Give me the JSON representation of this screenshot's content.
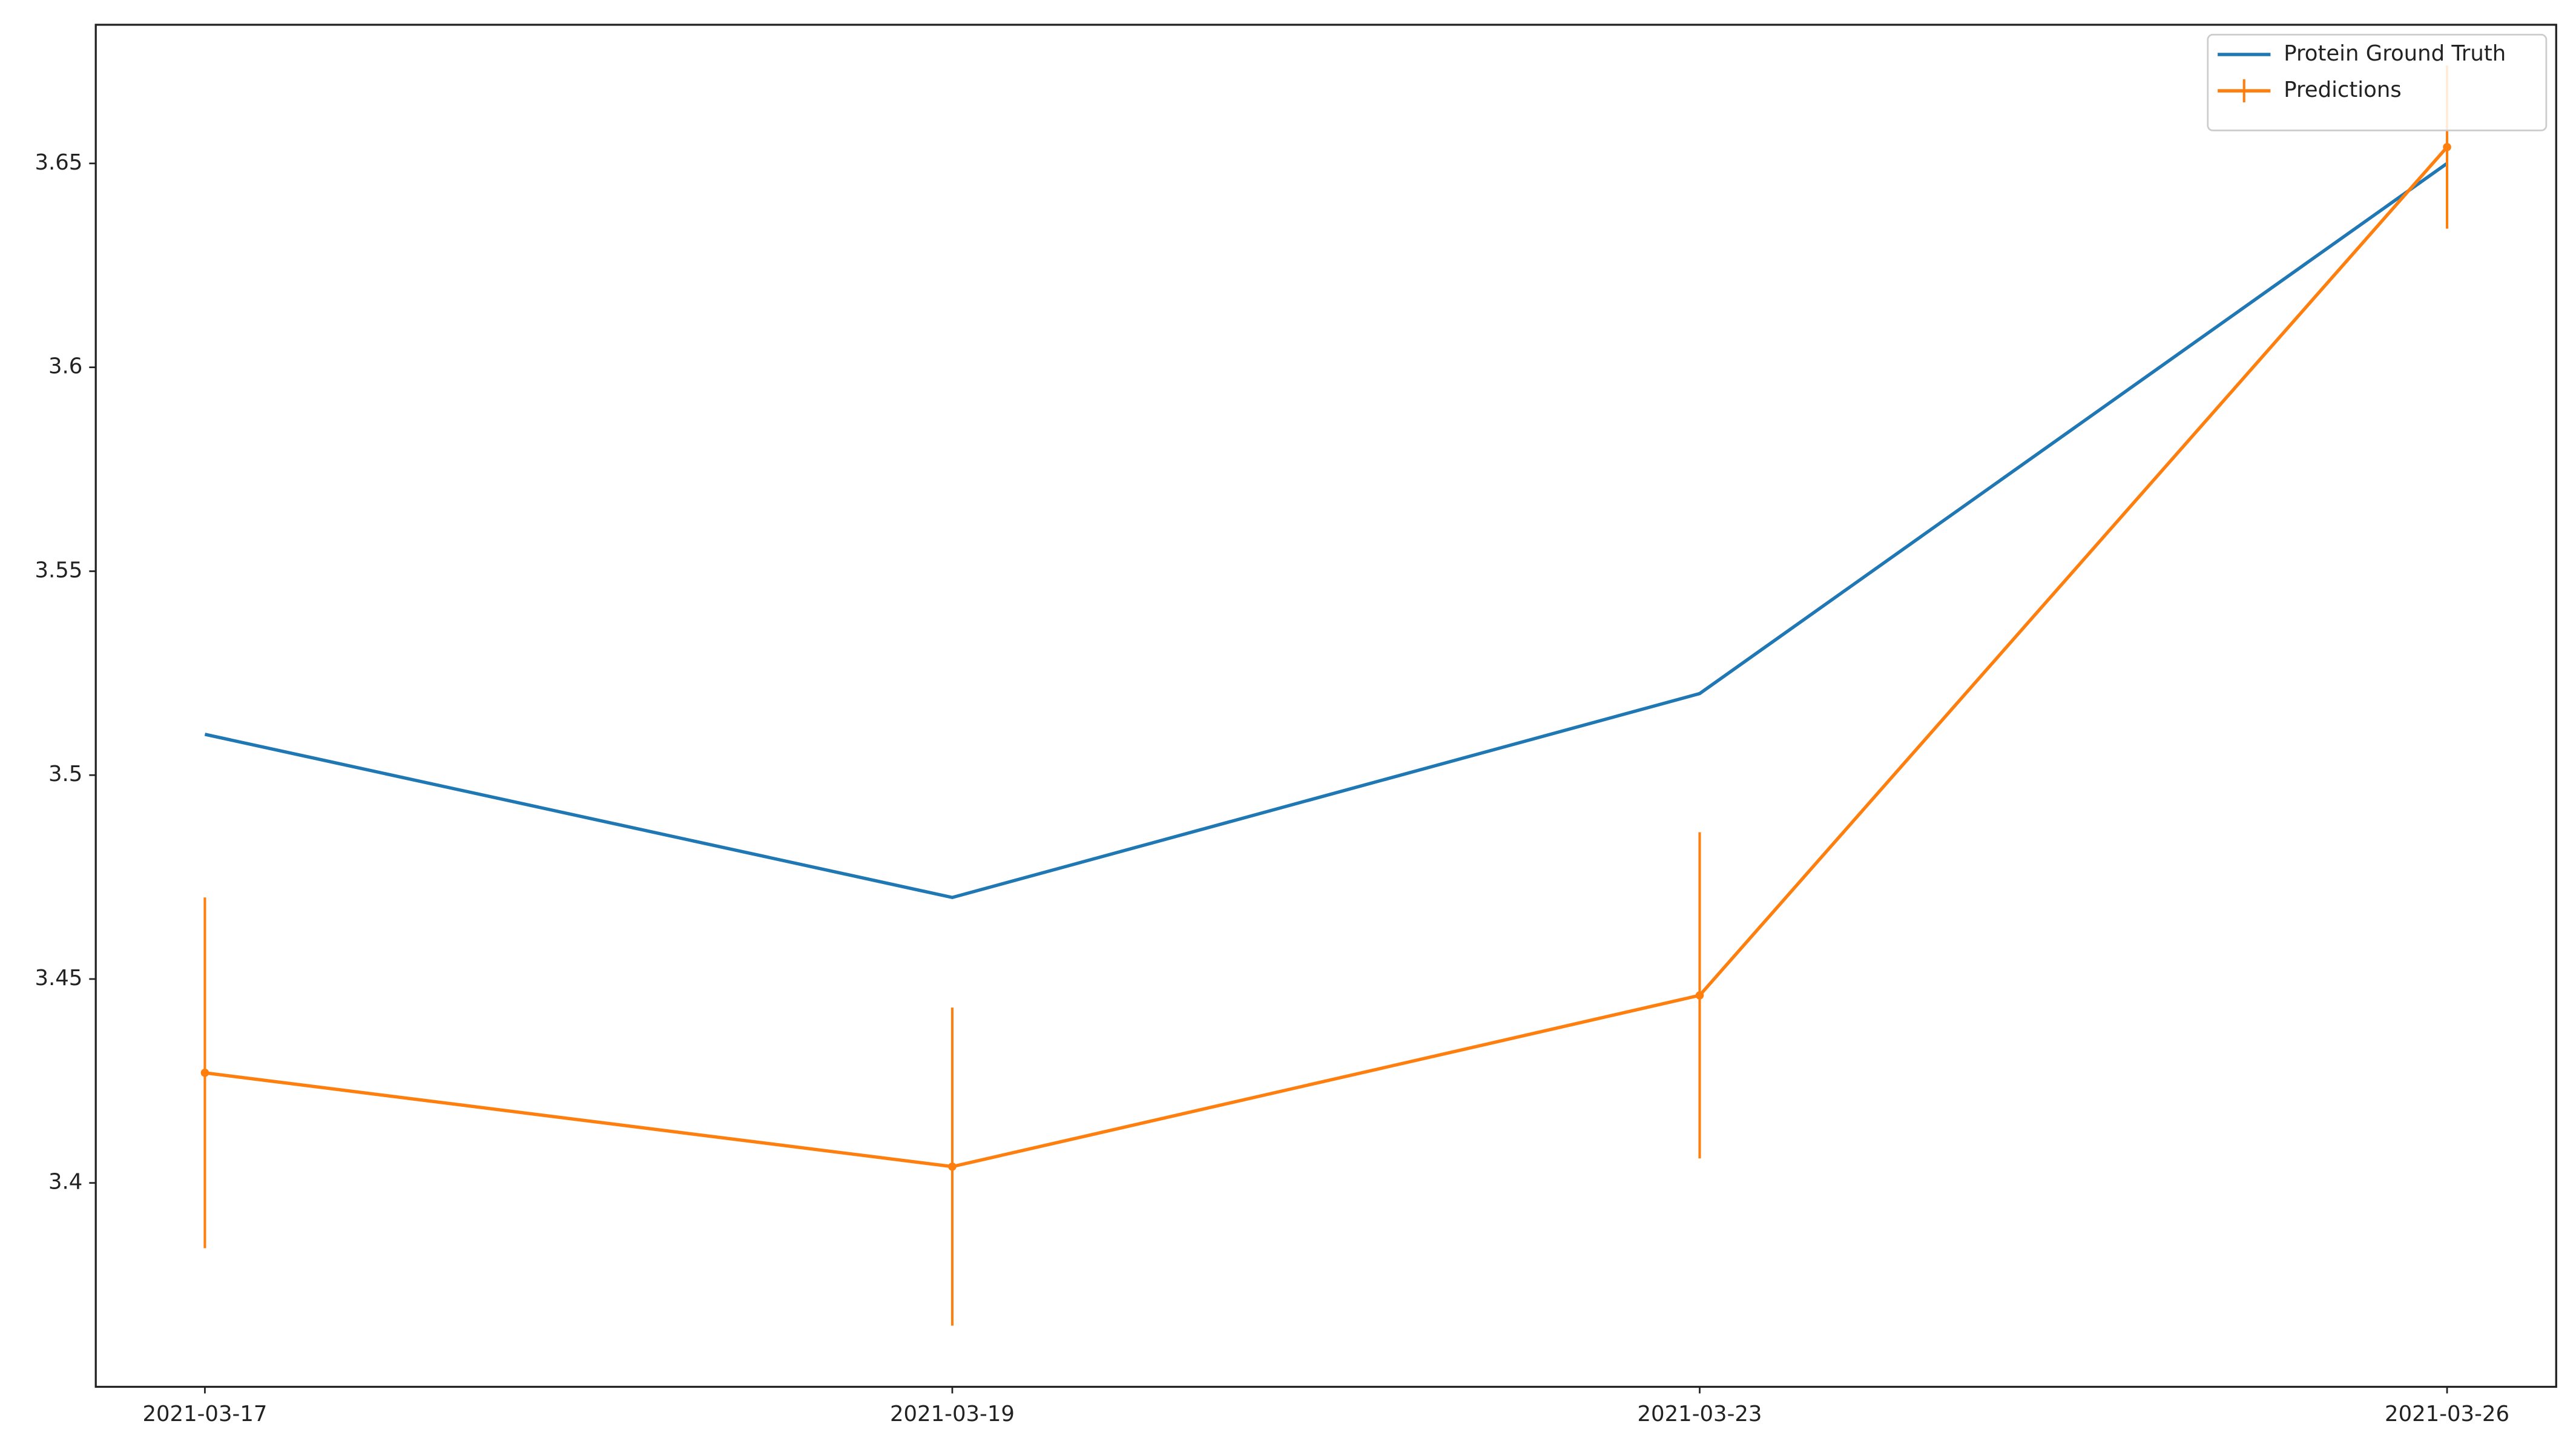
{
  "chart_data": {
    "type": "line",
    "categories": [
      "2021-03-17",
      "2021-03-19",
      "2021-03-23",
      "2021-03-26"
    ],
    "series": [
      {
        "name": "Protein Ground Truth",
        "color": "#1f77b4",
        "values": [
          3.51,
          3.47,
          3.52,
          3.65
        ]
      },
      {
        "name": "Predictions",
        "color": "#ff7f0e",
        "values": [
          3.427,
          3.404,
          3.446,
          3.654
        ],
        "errors": [
          0.043,
          0.039,
          0.04,
          0.02
        ]
      }
    ],
    "ylim": [
      3.35,
      3.684
    ],
    "yticks": [
      3.4,
      3.45,
      3.5,
      3.55,
      3.6,
      3.65
    ],
    "legend": "upper right",
    "grid": false
  }
}
